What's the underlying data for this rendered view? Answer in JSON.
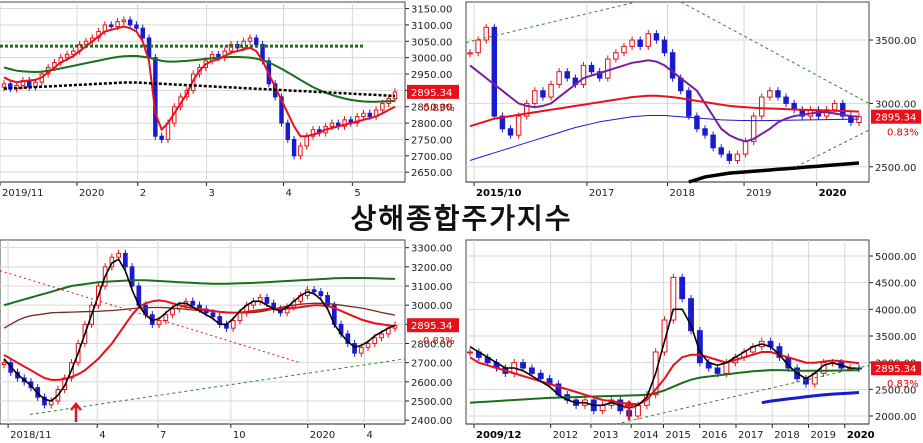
{
  "page_title": "상해종합주가지수",
  "colors": {
    "up": "#e8101a",
    "down": "#1a1acf",
    "price_box": "#e8101a",
    "grid": "#d8d8d8",
    "ma_green": "#1a6f1a",
    "ma_red": "#e8101a",
    "ma_black": "#000000",
    "ma_purple": "#7a1fa0",
    "ma_blue": "#1a1acf",
    "trend": "#2a8a2a"
  },
  "chart_data": [
    {
      "id": "daily",
      "type": "line",
      "y_ticks": [
        3150,
        3100,
        3050,
        3000,
        2950,
        2900,
        2850,
        2800,
        2750,
        2700,
        2650
      ],
      "y_tick_labels": [
        "3150.00",
        "3100.00",
        "3050.00",
        "3000.00",
        "2950.00",
        "2900.00",
        "2850.00",
        "2800.00",
        "2750.00",
        "2700.00",
        "2650.00"
      ],
      "ylim": [
        2620,
        3170
      ],
      "x_labels": [
        "2019/11",
        "2020",
        "2",
        "3",
        "4",
        "5"
      ],
      "x_label_pos": [
        0,
        0.19,
        0.34,
        0.51,
        0.7,
        0.87
      ],
      "last_price": "2895.34",
      "change_pct": "0.83%",
      "price": [
        2920,
        2905,
        2915,
        2930,
        2910,
        2925,
        2950,
        2970,
        2985,
        3000,
        3010,
        3020,
        3040,
        3050,
        3060,
        3080,
        3100,
        3095,
        3110,
        3115,
        3100,
        3090,
        3060,
        3000,
        2760,
        2750,
        2800,
        2850,
        2880,
        2900,
        2950,
        2970,
        2990,
        3010,
        3000,
        3020,
        3040,
        3030,
        3050,
        3060,
        3040,
        2990,
        2920,
        2880,
        2800,
        2750,
        2700,
        2730,
        2760,
        2780,
        2770,
        2790,
        2800,
        2790,
        2810,
        2800,
        2820,
        2830,
        2820,
        2840,
        2860,
        2875,
        2895
      ],
      "ma_red": [
        2940,
        2930,
        2925,
        2928,
        2930,
        2932,
        2940,
        2955,
        2970,
        2985,
        2995,
        3005,
        3020,
        3035,
        3050,
        3065,
        3080,
        3085,
        3090,
        3095,
        3090,
        3080,
        3050,
        2990,
        2830,
        2780,
        2800,
        2830,
        2860,
        2890,
        2930,
        2960,
        2980,
        2990,
        2995,
        3005,
        3015,
        3020,
        3025,
        3030,
        3020,
        2990,
        2950,
        2910,
        2870,
        2830,
        2790,
        2760,
        2760,
        2765,
        2770,
        2780,
        2785,
        2790,
        2795,
        2800,
        2805,
        2810,
        2815,
        2820,
        2830,
        2840,
        2850
      ],
      "ma_green": [
        2970,
        2965,
        2960,
        2958,
        2957,
        2956,
        2957,
        2960,
        2963,
        2967,
        2971,
        2975,
        2979,
        2983,
        2987,
        2991,
        2995,
        2999,
        3002,
        3004,
        3005,
        3005,
        3003,
        3000,
        2995,
        2990,
        2988,
        2988,
        2989,
        2990,
        2992,
        2994,
        2996,
        2998,
        3000,
        3001,
        3002,
        3002,
        3001,
        3000,
        2997,
        2992,
        2985,
        2976,
        2966,
        2955,
        2944,
        2932,
        2921,
        2910,
        2901,
        2893,
        2886,
        2880,
        2875,
        2871,
        2868,
        2866,
        2865,
        2865,
        2866,
        2867,
        2868
      ],
      "ma_black": [
        2905,
        2906,
        2907,
        2908,
        2909,
        2910,
        2911,
        2912,
        2913,
        2914,
        2915,
        2916,
        2917,
        2918,
        2919,
        2920,
        2921,
        2922,
        2923,
        2924,
        2924,
        2924,
        2923,
        2922,
        2921,
        2920,
        2919,
        2918,
        2917,
        2916,
        2915,
        2914,
        2913,
        2912,
        2911,
        2910,
        2909,
        2908,
        2907,
        2906,
        2905,
        2904,
        2903,
        2902,
        2901,
        2900,
        2899,
        2898,
        2897,
        2896,
        2895,
        2894,
        2893,
        2892,
        2891,
        2890,
        2889,
        2888,
        2887,
        2886,
        2885,
        2884,
        2883
      ],
      "hline_green": 3035
    },
    {
      "id": "weekly",
      "type": "line",
      "y_ticks": [
        3500,
        3000,
        2500
      ],
      "y_tick_labels": [
        "3500.00",
        "3000.00",
        "2500.00"
      ],
      "ylim": [
        2380,
        3800
      ],
      "x_labels": [
        "2015/10",
        "2017",
        "2018",
        "2019",
        "2020"
      ],
      "x_label_pos": [
        0.02,
        0.3,
        0.5,
        0.69,
        0.87
      ],
      "last_price": "2895.34",
      "change_pct": "0.83%",
      "price": [
        3400,
        3500,
        3600,
        2900,
        2800,
        2750,
        2900,
        3000,
        3100,
        3050,
        3150,
        3250,
        3200,
        3150,
        3300,
        3250,
        3200,
        3350,
        3400,
        3450,
        3500,
        3450,
        3550,
        3500,
        3400,
        3200,
        3100,
        2900,
        2800,
        2750,
        2650,
        2600,
        2550,
        2600,
        2700,
        2900,
        3050,
        3100,
        3050,
        3000,
        2950,
        2900,
        2950,
        2900,
        2950,
        3000,
        2900,
        2850,
        2895
      ],
      "ma_red": [
        2820,
        2840,
        2860,
        2880,
        2890,
        2900,
        2910,
        2920,
        2930,
        2940,
        2950,
        2960,
        2970,
        2980,
        2990,
        3000,
        3010,
        3020,
        3030,
        3040,
        3050,
        3055,
        3060,
        3060,
        3055,
        3050,
        3040,
        3030,
        3020,
        3010,
        3000,
        2990,
        2980,
        2975,
        2970,
        2965,
        2962,
        2960,
        2958,
        2955,
        2952,
        2950,
        2948,
        2946,
        2944,
        2942,
        2940,
        2938,
        2935
      ],
      "ma_purple": [
        3300,
        3250,
        3200,
        3150,
        3100,
        3050,
        3000,
        2980,
        2970,
        2980,
        3000,
        3050,
        3100,
        3150,
        3200,
        3220,
        3240,
        3260,
        3280,
        3300,
        3320,
        3330,
        3340,
        3330,
        3300,
        3250,
        3200,
        3150,
        3100,
        3000,
        2900,
        2800,
        2750,
        2720,
        2700,
        2720,
        2760,
        2800,
        2850,
        2880,
        2900,
        2910,
        2920,
        2930,
        2930,
        2920,
        2910,
        2900,
        2895
      ],
      "ma_blue": [
        2550,
        2570,
        2590,
        2610,
        2630,
        2650,
        2670,
        2690,
        2710,
        2730,
        2750,
        2770,
        2790,
        2810,
        2825,
        2840,
        2855,
        2865,
        2875,
        2885,
        2895,
        2900,
        2905,
        2905,
        2905,
        2900,
        2895,
        2890,
        2885,
        2880,
        2875,
        2870,
        2868,
        2866,
        2865,
        2864,
        2864,
        2865,
        2866,
        2867,
        2868,
        2869,
        2870,
        2871,
        2872,
        2873,
        2874,
        2875,
        2876
      ],
      "ma_black": [
        null,
        null,
        null,
        null,
        null,
        null,
        null,
        null,
        null,
        null,
        null,
        null,
        null,
        null,
        null,
        null,
        null,
        null,
        null,
        null,
        null,
        null,
        null,
        null,
        null,
        null,
        null,
        2380,
        2400,
        2420,
        2430,
        2440,
        2450,
        2455,
        2460,
        2465,
        2470,
        2475,
        2480,
        2485,
        2490,
        2495,
        2500,
        2505,
        2510,
        2515,
        2520,
        2525,
        2530
      ]
    },
    {
      "id": "daily-long",
      "type": "line",
      "y_ticks": [
        3300,
        3200,
        3100,
        3000,
        2900,
        2800,
        2700,
        2600,
        2500,
        2400
      ],
      "y_tick_labels": [
        "3300.00",
        "3200.00",
        "3100.00",
        "3000.00",
        "2900.00",
        "2800.00",
        "2700.00",
        "2600.00",
        "2500.00",
        "2400.00"
      ],
      "ylim": [
        2380,
        3340
      ],
      "x_labels": [
        "2018/11",
        "4",
        "7",
        "10",
        "2020",
        "4"
      ],
      "x_label_pos": [
        0.02,
        0.24,
        0.39,
        0.57,
        0.76,
        0.9
      ],
      "last_price": "2895.34",
      "change_pct": "0.83%",
      "price": [
        2700,
        2650,
        2620,
        2600,
        2570,
        2520,
        2480,
        2500,
        2560,
        2620,
        2700,
        2800,
        2900,
        3000,
        3100,
        3200,
        3250,
        3270,
        3200,
        3100,
        3000,
        2950,
        2900,
        2920,
        2950,
        2980,
        3000,
        3020,
        3000,
        2980,
        2960,
        2940,
        2900,
        2880,
        2920,
        2960,
        3000,
        3020,
        3040,
        3010,
        2980,
        2960,
        2990,
        3020,
        3050,
        3080,
        3070,
        3050,
        3000,
        2900,
        2850,
        2800,
        2750,
        2780,
        2800,
        2830,
        2850,
        2880,
        2895
      ],
      "ma_red": [
        2740,
        2720,
        2700,
        2680,
        2660,
        2640,
        2620,
        2610,
        2610,
        2615,
        2625,
        2640,
        2660,
        2690,
        2720,
        2760,
        2800,
        2850,
        2900,
        2950,
        2990,
        3010,
        3020,
        3025,
        3020,
        3010,
        3000,
        2990,
        2985,
        2980,
        2975,
        2970,
        2965,
        2962,
        2960,
        2962,
        2965,
        2970,
        2975,
        2980,
        2980,
        2980,
        2982,
        2985,
        2990,
        2995,
        3000,
        3000,
        2995,
        2985,
        2970,
        2955,
        2940,
        2925,
        2915,
        2905,
        2900,
        2895,
        2890
      ],
      "ma_black": [
        2720,
        2680,
        2640,
        2610,
        2580,
        2540,
        2510,
        2500,
        2530,
        2580,
        2660,
        2750,
        2850,
        2950,
        3050,
        3150,
        3220,
        3240,
        3180,
        3080,
        3000,
        2950,
        2920,
        2930,
        2960,
        2990,
        3010,
        3010,
        2990,
        2970,
        2950,
        2930,
        2900,
        2900,
        2930,
        2970,
        3000,
        3020,
        3020,
        3000,
        2980,
        2970,
        2990,
        3020,
        3050,
        3070,
        3060,
        3030,
        2980,
        2900,
        2850,
        2810,
        2780,
        2790,
        2810,
        2840,
        2860,
        2880,
        2895
      ],
      "ma_green": [
        3000,
        3010,
        3020,
        3030,
        3040,
        3050,
        3060,
        3070,
        3080,
        3090,
        3100,
        3105,
        3110,
        3115,
        3120,
        3122,
        3124,
        3126,
        3128,
        3130,
        3130,
        3130,
        3128,
        3126,
        3124,
        3122,
        3120,
        3118,
        3116,
        3114,
        3113,
        3112,
        3112,
        3112,
        3113,
        3114,
        3115,
        3116,
        3118,
        3120,
        3122,
        3124,
        3126,
        3128,
        3130,
        3132,
        3134,
        3136,
        3138,
        3140,
        3141,
        3142,
        3142,
        3142,
        3141,
        3140,
        3139,
        3138,
        3137
      ],
      "ma_brown": [
        2880,
        2900,
        2920,
        2935,
        2945,
        2950,
        2955,
        2960,
        2962,
        2963,
        2964,
        2965,
        2966,
        2967,
        2968,
        2970,
        2972,
        2975,
        2978,
        2982,
        2985,
        2987,
        2988,
        2988,
        2987,
        2985,
        2982,
        2978,
        2975,
        2972,
        2970,
        2968,
        2966,
        2964,
        2962,
        2960,
        2960,
        2962,
        2966,
        2972,
        2980,
        2988,
        2995,
        3000,
        3005,
        3008,
        3010,
        3010,
        3008,
        3005,
        3000,
        2995,
        2990,
        2985,
        2978,
        2970,
        2962,
        2955,
        2948
      ]
    },
    {
      "id": "monthly",
      "type": "line",
      "y_ticks": [
        5000,
        4500,
        4000,
        3500,
        3000,
        2500,
        2000
      ],
      "y_tick_labels": [
        "5000.00",
        "4500.00",
        "4000.00",
        "3500.00",
        "3000.00",
        "2500.00",
        "2000.00"
      ],
      "ylim": [
        1850,
        5300
      ],
      "x_labels": [
        "2009/12",
        "2012",
        "2013",
        "2014",
        "2015",
        "2016",
        "2017",
        "2018",
        "2019",
        "2020"
      ],
      "x_label_pos": [
        0.02,
        0.21,
        0.31,
        0.41,
        0.49,
        0.58,
        0.67,
        0.76,
        0.85,
        0.94
      ],
      "last_price": "2895.34",
      "change_pct": "0.83%",
      "price": [
        3200,
        3100,
        3000,
        2900,
        2800,
        3000,
        2900,
        2800,
        2700,
        2600,
        2400,
        2300,
        2200,
        2300,
        2100,
        2200,
        2300,
        2100,
        2000,
        2200,
        2400,
        3200,
        3800,
        4600,
        4200,
        3600,
        3000,
        2900,
        2800,
        3000,
        3100,
        3200,
        3300,
        3400,
        3300,
        3100,
        2900,
        2700,
        2600,
        2800,
        3000,
        3000,
        2900,
        2900,
        2895
      ],
      "ma_red": [
        3100,
        3000,
        2950,
        2900,
        2850,
        2800,
        2750,
        2700,
        2650,
        2600,
        2550,
        2500,
        2450,
        2400,
        2350,
        2300,
        2280,
        2250,
        2230,
        2220,
        2300,
        2500,
        2700,
        2950,
        3100,
        3150,
        3150,
        3100,
        3050,
        3000,
        3050,
        3100,
        3150,
        3200,
        3200,
        3150,
        3100,
        3050,
        3000,
        3000,
        3020,
        3040,
        3030,
        3010,
        2990
      ],
      "ma_black": [
        3300,
        3200,
        3100,
        3000,
        2900,
        2900,
        2850,
        2750,
        2650,
        2550,
        2400,
        2300,
        2250,
        2250,
        2200,
        2200,
        2250,
        2200,
        2150,
        2200,
        2350,
        2800,
        3400,
        4000,
        4000,
        3700,
        3200,
        3000,
        2950,
        3000,
        3100,
        3200,
        3300,
        3350,
        3300,
        3150,
        2950,
        2800,
        2700,
        2800,
        2950,
        3000,
        2950,
        2900,
        2895
      ],
      "ma_green": [
        2250,
        2260,
        2270,
        2280,
        2290,
        2300,
        2310,
        2320,
        2330,
        2340,
        2345,
        2350,
        2355,
        2360,
        2365,
        2370,
        2375,
        2380,
        2385,
        2390,
        2400,
        2430,
        2480,
        2550,
        2620,
        2680,
        2720,
        2740,
        2760,
        2780,
        2800,
        2820,
        2840,
        2850,
        2860,
        2860,
        2855,
        2850,
        2848,
        2848,
        2850,
        2852,
        2854,
        2856,
        2858
      ],
      "ma_blue": [
        null,
        null,
        null,
        null,
        null,
        null,
        null,
        null,
        null,
        null,
        null,
        null,
        null,
        null,
        null,
        null,
        null,
        null,
        null,
        null,
        null,
        null,
        null,
        null,
        null,
        null,
        null,
        null,
        null,
        null,
        null,
        null,
        null,
        2250,
        2280,
        2300,
        2320,
        2340,
        2360,
        2380,
        2395,
        2410,
        2420,
        2430,
        2440
      ]
    }
  ]
}
